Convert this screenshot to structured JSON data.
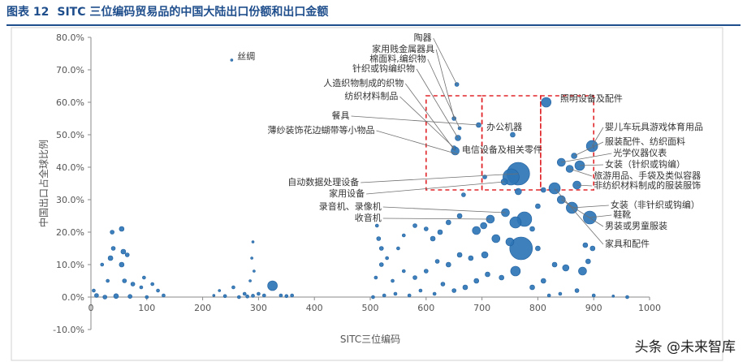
{
  "header": {
    "figure_number": "图表 12",
    "title": "SITC 三位编码贸易品的中国大陆出口份额和出口金额"
  },
  "watermark": "头条 @未来智库",
  "colors": {
    "bubble": "#2e75b6",
    "bubble_edge": "#1f5f9e",
    "box": "#e0262a",
    "title": "#1f4e8c"
  },
  "chart_data": {
    "type": "scatter",
    "title": "SITC 三位编码贸易品的中国大陆出口份额和出口金额",
    "xlabel": "SITC三位编码",
    "ylabel": "中国出口占全球比例",
    "xlim": [
      0,
      1000
    ],
    "ylim": [
      -10,
      80
    ],
    "xticks": [
      "0",
      "100",
      "200",
      "300",
      "400",
      "500",
      "600",
      "700",
      "800",
      "900",
      "1000"
    ],
    "yticks": [
      "-10.0%",
      "0.0%",
      "10.0%",
      "20.0%",
      "30.0%",
      "40.0%",
      "50.0%",
      "60.0%",
      "70.0%",
      "80.0%"
    ],
    "grid": false,
    "highlight_boxes": [
      {
        "x": [
          600,
          700
        ],
        "y": [
          33,
          62
        ]
      },
      {
        "x": [
          700,
          805
        ],
        "y": [
          33,
          62
        ]
      },
      {
        "x": [
          805,
          900
        ],
        "y": [
          33,
          62
        ]
      }
    ],
    "points": [
      {
        "x": 655,
        "y": 65.5,
        "r": 2.5
      },
      {
        "x": 650,
        "y": 55,
        "r": 2.5
      },
      {
        "x": 660,
        "y": 52,
        "r": 2
      },
      {
        "x": 657,
        "y": 49,
        "r": 3.5
      },
      {
        "x": 652,
        "y": 45,
        "r": 5
      },
      {
        "x": 650,
        "y": 46,
        "r": 2.5
      },
      {
        "x": 694,
        "y": 53,
        "r": 3
      },
      {
        "x": 755,
        "y": 50,
        "r": 3
      },
      {
        "x": 815,
        "y": 60,
        "r": 6
      },
      {
        "x": 897,
        "y": 46.5,
        "r": 7
      },
      {
        "x": 865,
        "y": 43.5,
        "r": 3.5
      },
      {
        "x": 842,
        "y": 41.5,
        "r": 5
      },
      {
        "x": 875,
        "y": 40.5,
        "r": 6
      },
      {
        "x": 857,
        "y": 39.5,
        "r": 4.5
      },
      {
        "x": 870,
        "y": 34.5,
        "r": 5
      },
      {
        "x": 830,
        "y": 33.5,
        "r": 7
      },
      {
        "x": 842,
        "y": 30,
        "r": 5
      },
      {
        "x": 861,
        "y": 27.5,
        "r": 7
      },
      {
        "x": 893,
        "y": 24.5,
        "r": 8
      },
      {
        "x": 765,
        "y": 38,
        "r": 14
      },
      {
        "x": 752,
        "y": 37,
        "r": 10
      },
      {
        "x": 765,
        "y": 32.5,
        "r": 4
      },
      {
        "x": 740,
        "y": 35.5,
        "r": 4
      },
      {
        "x": 667,
        "y": 31.5,
        "r": 2.5
      },
      {
        "x": 705,
        "y": 37,
        "r": 2.5
      },
      {
        "x": 776,
        "y": 24,
        "r": 9
      },
      {
        "x": 760,
        "y": 23,
        "r": 7
      },
      {
        "x": 742,
        "y": 26,
        "r": 5
      },
      {
        "x": 715,
        "y": 24,
        "r": 5
      },
      {
        "x": 703,
        "y": 22,
        "r": 4
      },
      {
        "x": 690,
        "y": 20.5,
        "r": 5
      },
      {
        "x": 660,
        "y": 25,
        "r": 3
      },
      {
        "x": 640,
        "y": 23,
        "r": 3
      },
      {
        "x": 625,
        "y": 20,
        "r": 3
      },
      {
        "x": 612,
        "y": 18,
        "r": 3
      },
      {
        "x": 600,
        "y": 21,
        "r": 2.5
      },
      {
        "x": 580,
        "y": 22,
        "r": 2.5
      },
      {
        "x": 560,
        "y": 19,
        "r": 2
      },
      {
        "x": 550,
        "y": 15,
        "r": 2
      },
      {
        "x": 770,
        "y": 15,
        "r": 14
      },
      {
        "x": 750,
        "y": 17,
        "r": 5
      },
      {
        "x": 725,
        "y": 18,
        "r": 5
      },
      {
        "x": 705,
        "y": 13,
        "r": 4
      },
      {
        "x": 680,
        "y": 12,
        "r": 3
      },
      {
        "x": 660,
        "y": 13,
        "r": 3
      },
      {
        "x": 640,
        "y": 10,
        "r": 3
      },
      {
        "x": 620,
        "y": 11,
        "r": 2.5
      },
      {
        "x": 600,
        "y": 8,
        "r": 2.5
      },
      {
        "x": 580,
        "y": 6,
        "r": 2.5
      },
      {
        "x": 560,
        "y": 8,
        "r": 2
      },
      {
        "x": 540,
        "y": 5,
        "r": 2
      },
      {
        "x": 520,
        "y": 10,
        "r": 2.5
      },
      {
        "x": 510,
        "y": 6,
        "r": 2
      },
      {
        "x": 515,
        "y": 18,
        "r": 2.5
      },
      {
        "x": 520,
        "y": 15,
        "r": 2.5
      },
      {
        "x": 530,
        "y": 12,
        "r": 2
      },
      {
        "x": 512,
        "y": 22,
        "r": 2
      },
      {
        "x": 760,
        "y": 8,
        "r": 6
      },
      {
        "x": 735,
        "y": 6,
        "r": 3
      },
      {
        "x": 710,
        "y": 7,
        "r": 3
      },
      {
        "x": 690,
        "y": 5,
        "r": 3
      },
      {
        "x": 670,
        "y": 3,
        "r": 3
      },
      {
        "x": 650,
        "y": 2,
        "r": 2.5
      },
      {
        "x": 630,
        "y": 4,
        "r": 2.5
      },
      {
        "x": 615,
        "y": 1,
        "r": 2
      },
      {
        "x": 590,
        "y": 2,
        "r": 2
      },
      {
        "x": 570,
        "y": 0.5,
        "r": 2
      },
      {
        "x": 545,
        "y": 1,
        "r": 2
      },
      {
        "x": 525,
        "y": 0.5,
        "r": 2
      },
      {
        "x": 505,
        "y": 0,
        "r": 2
      },
      {
        "x": 790,
        "y": 3,
        "r": 3
      },
      {
        "x": 810,
        "y": 5,
        "r": 3
      },
      {
        "x": 830,
        "y": 10,
        "r": 3
      },
      {
        "x": 850,
        "y": 9,
        "r": 4
      },
      {
        "x": 880,
        "y": 8,
        "r": 5
      },
      {
        "x": 890,
        "y": 11,
        "r": 3
      },
      {
        "x": 898,
        "y": 15,
        "r": 3
      },
      {
        "x": 885,
        "y": 16,
        "r": 3
      },
      {
        "x": 870,
        "y": 2,
        "r": 2.5
      },
      {
        "x": 840,
        "y": 1,
        "r": 2
      },
      {
        "x": 820,
        "y": 0.5,
        "r": 2
      },
      {
        "x": 900,
        "y": 0.5,
        "r": 2
      },
      {
        "x": 960,
        "y": 0,
        "r": 2
      },
      {
        "x": 935,
        "y": 0.3,
        "r": 1.5
      },
      {
        "x": 800,
        "y": 15,
        "r": 3
      },
      {
        "x": 790,
        "y": 21,
        "r": 3
      },
      {
        "x": 800,
        "y": 28,
        "r": 3
      },
      {
        "x": 810,
        "y": 33,
        "r": 3
      },
      {
        "x": 252,
        "y": 73,
        "r": 1.5
      },
      {
        "x": 38,
        "y": 20,
        "r": 2.5
      },
      {
        "x": 55,
        "y": 21,
        "r": 3
      },
      {
        "x": 40,
        "y": 15,
        "r": 2.5
      },
      {
        "x": 58,
        "y": 14,
        "r": 3
      },
      {
        "x": 35,
        "y": 12,
        "r": 3
      },
      {
        "x": 55,
        "y": 10,
        "r": 3
      },
      {
        "x": 65,
        "y": 13,
        "r": 2.5
      },
      {
        "x": 20,
        "y": 10,
        "r": 2
      },
      {
        "x": 30,
        "y": 5,
        "r": 2
      },
      {
        "x": 60,
        "y": 5,
        "r": 2.5
      },
      {
        "x": 75,
        "y": 4,
        "r": 2.5
      },
      {
        "x": 90,
        "y": 3,
        "r": 2
      },
      {
        "x": 110,
        "y": 4,
        "r": 2
      },
      {
        "x": 95,
        "y": 6,
        "r": 2
      },
      {
        "x": 120,
        "y": 2,
        "r": 2
      },
      {
        "x": 10,
        "y": 0.5,
        "r": 2.5
      },
      {
        "x": 25,
        "y": 0,
        "r": 2.5
      },
      {
        "x": 45,
        "y": 0.3,
        "r": 3
      },
      {
        "x": 70,
        "y": 0.2,
        "r": 2.5
      },
      {
        "x": 100,
        "y": 0,
        "r": 2
      },
      {
        "x": 130,
        "y": 0.5,
        "r": 2
      },
      {
        "x": 5,
        "y": 2,
        "r": 2
      },
      {
        "x": 240,
        "y": 0.3,
        "r": 2
      },
      {
        "x": 255,
        "y": 3,
        "r": 2
      },
      {
        "x": 265,
        "y": 0,
        "r": 2
      },
      {
        "x": 275,
        "y": 1,
        "r": 2
      },
      {
        "x": 280,
        "y": 0.2,
        "r": 2
      },
      {
        "x": 290,
        "y": 0.4,
        "r": 2
      },
      {
        "x": 290,
        "y": 17,
        "r": 1.5
      },
      {
        "x": 288,
        "y": 12,
        "r": 1.5
      },
      {
        "x": 292,
        "y": 8,
        "r": 1.5
      },
      {
        "x": 285,
        "y": 5,
        "r": 1.5
      },
      {
        "x": 325,
        "y": 3.5,
        "r": 6
      },
      {
        "x": 340,
        "y": 0.5,
        "r": 2
      },
      {
        "x": 350,
        "y": 0.3,
        "r": 2
      },
      {
        "x": 360,
        "y": 0.5,
        "r": 2
      },
      {
        "x": 310,
        "y": 0.5,
        "r": 2
      },
      {
        "x": 300,
        "y": 1,
        "r": 2
      },
      {
        "x": 230,
        "y": 2,
        "r": 1.5
      },
      {
        "x": 220,
        "y": 0.5,
        "r": 1.5
      }
    ],
    "annotations": [
      {
        "text": "丝绸",
        "x": 252,
        "y": 73,
        "label_x": 262,
        "label_y": 73.2,
        "anchor": "start",
        "leader": false
      },
      {
        "text": "陶器",
        "x": 655,
        "y": 65.5,
        "label_x": 610,
        "label_y": 79,
        "anchor": "end",
        "leader": true
      },
      {
        "text": "家用贱金属器具",
        "x": 650,
        "y": 55,
        "label_x": 615,
        "label_y": 75.5,
        "anchor": "end",
        "leader": true
      },
      {
        "text": "棉面料,编织物",
        "x": 660,
        "y": 52,
        "label_x": 600,
        "label_y": 72.5,
        "anchor": "end",
        "leader": true
      },
      {
        "text": "针织或钩编织物",
        "x": 657,
        "y": 49,
        "label_x": 580,
        "label_y": 69.5,
        "anchor": "end",
        "leader": true
      },
      {
        "text": "人造织物制成的织物",
        "x": 652,
        "y": 45,
        "label_x": 560,
        "label_y": 65,
        "anchor": "end",
        "leader": true
      },
      {
        "text": "纺织材料制品",
        "x": 650,
        "y": 46,
        "label_x": 550,
        "label_y": 61,
        "anchor": "end",
        "leader": true
      },
      {
        "text": "餐具",
        "x": 694,
        "y": 53,
        "label_x": 463,
        "label_y": 55,
        "anchor": "end",
        "leader": true
      },
      {
        "text": "薄纱装饰花边蝴带等小物品",
        "x": 657,
        "y": 44,
        "label_x": 508,
        "label_y": 50.5,
        "anchor": "end",
        "leader": true
      },
      {
        "text": "办公机器",
        "x": 755,
        "y": 50,
        "label_x": 708,
        "label_y": 51.5,
        "anchor": "start",
        "leader": false
      },
      {
        "text": "电信设备及相关零件",
        "x": 752,
        "y": 37,
        "label_x": 664,
        "label_y": 44.5,
        "anchor": "start",
        "leader": false
      },
      {
        "text": "自动数据处理设备",
        "x": 765,
        "y": 38,
        "label_x": 480,
        "label_y": 34.5,
        "anchor": "end",
        "leader": true
      },
      {
        "text": "家用设备",
        "x": 740,
        "y": 35.5,
        "label_x": 490,
        "label_y": 31,
        "anchor": "end",
        "leader": true
      },
      {
        "text": "录音机、录像机",
        "x": 742,
        "y": 26,
        "label_x": 520,
        "label_y": 27,
        "anchor": "end",
        "leader": true
      },
      {
        "text": "收音机",
        "x": 715,
        "y": 24,
        "label_x": 520,
        "label_y": 23.5,
        "anchor": "end",
        "leader": true
      },
      {
        "text": "照明设备及配件",
        "x": 815,
        "y": 60,
        "label_x": 840,
        "label_y": 60.2,
        "anchor": "start",
        "leader": false
      },
      {
        "text": "婴儿车玩具游戏体育用品",
        "x": 897,
        "y": 46.5,
        "label_x": 920,
        "label_y": 51.5,
        "anchor": "start",
        "leader": true
      },
      {
        "text": "服装配件、纺织面料",
        "x": 865,
        "y": 43.5,
        "label_x": 920,
        "label_y": 47,
        "anchor": "start",
        "leader": true
      },
      {
        "text": "光学仪器仪表",
        "x": 842,
        "y": 41.5,
        "label_x": 935,
        "label_y": 43.5,
        "anchor": "start",
        "leader": true
      },
      {
        "text": "女装（针织或钩编）",
        "x": 875,
        "y": 40.5,
        "label_x": 920,
        "label_y": 40,
        "anchor": "start",
        "leader": true
      },
      {
        "text": "旅游用品、手袋及类似容器",
        "x": 857,
        "y": 39.5,
        "label_x": 900,
        "label_y": 36.5,
        "anchor": "start",
        "leader": true
      },
      {
        "text": "非纺织材料制成的服装服饰",
        "x": 870,
        "y": 34.5,
        "label_x": 900,
        "label_y": 33.5,
        "anchor": "start",
        "leader": true
      },
      {
        "text": "女装（非针织或钩编）",
        "x": 861,
        "y": 27.5,
        "label_x": 930,
        "label_y": 27.5,
        "anchor": "start",
        "leader": true
      },
      {
        "text": "鞋靴",
        "x": 893,
        "y": 24.5,
        "label_x": 935,
        "label_y": 24.5,
        "anchor": "start",
        "leader": true
      },
      {
        "text": "男装或男童服装",
        "x": 842,
        "y": 30,
        "label_x": 920,
        "label_y": 21,
        "anchor": "start",
        "leader": true
      },
      {
        "text": "家具和配件",
        "x": 830,
        "y": 33.5,
        "label_x": 920,
        "label_y": 15.5,
        "anchor": "start",
        "leader": true
      }
    ]
  }
}
